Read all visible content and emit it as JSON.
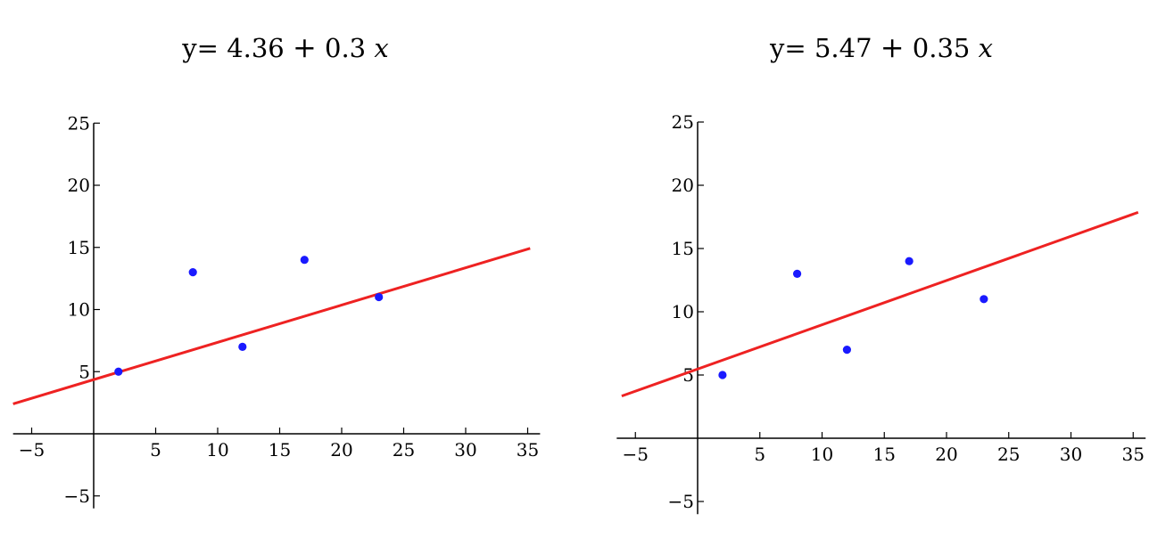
{
  "chart_data": [
    {
      "type": "scatter",
      "title": "y= 4.36 + 0.3 x",
      "title_parts": {
        "lhs": "y=",
        "intercept": "4.36",
        "plus": "+",
        "slope": "0.3",
        "var": "x"
      },
      "points": {
        "x": [
          2,
          8,
          12,
          17,
          23
        ],
        "y": [
          5,
          13,
          7,
          14,
          11
        ]
      },
      "fit_line": {
        "intercept": 4.36,
        "slope": 0.3,
        "x_range": [
          -6.5,
          35.2
        ]
      },
      "xlim": [
        -6.5,
        36
      ],
      "ylim": [
        -6,
        25
      ],
      "x_ticks": [
        "-5",
        "5",
        "10",
        "15",
        "20",
        "25",
        "30",
        "35"
      ],
      "y_ticks": [
        "25",
        "20",
        "15",
        "10",
        "5",
        "-5"
      ],
      "grid": false,
      "colors": {
        "points": "#1a1aff",
        "line": "#ee2222",
        "axes": "#000000"
      }
    },
    {
      "type": "scatter",
      "title": "y= 5.47 + 0.35 x",
      "title_parts": {
        "lhs": "y=",
        "intercept": "5.47",
        "plus": "+",
        "slope": "0.35",
        "var": "x"
      },
      "points": {
        "x": [
          2,
          8,
          12,
          17,
          23
        ],
        "y": [
          5,
          13,
          7,
          14,
          11
        ]
      },
      "fit_line": {
        "intercept": 5.47,
        "slope": 0.35,
        "x_range": [
          -6.1,
          35.4
        ]
      },
      "xlim": [
        -6.5,
        36
      ],
      "ylim": [
        -6,
        25
      ],
      "x_ticks": [
        "-5",
        "5",
        "10",
        "15",
        "20",
        "25",
        "30",
        "35"
      ],
      "y_ticks": [
        "25",
        "20",
        "15",
        "10",
        "5",
        "-5"
      ],
      "grid": false,
      "colors": {
        "points": "#1a1aff",
        "line": "#ee2222",
        "axes": "#000000"
      }
    }
  ]
}
